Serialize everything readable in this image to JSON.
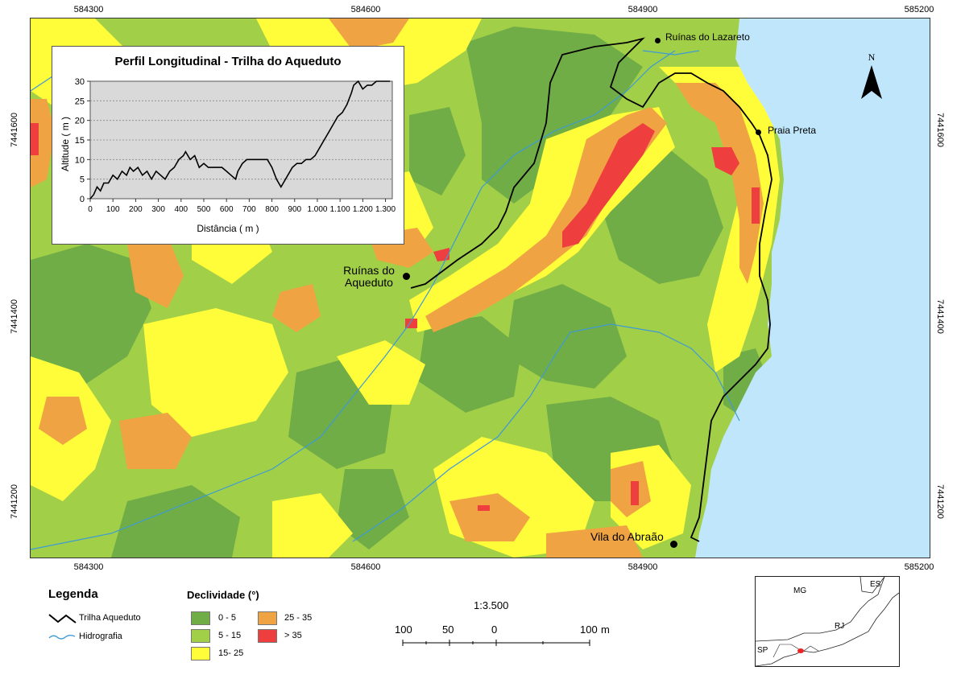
{
  "coords": {
    "top": [
      "584300",
      "584600",
      "584900",
      "585200"
    ],
    "bottom": [
      "584300",
      "584600",
      "584900",
      "585200"
    ],
    "left": [
      "7441600",
      "7441400",
      "7441200"
    ],
    "right": [
      "7441600",
      "7441400",
      "7441200"
    ]
  },
  "places": {
    "lazareto": "Ruínas do Lazareto",
    "praia_preta": "Praia Preta",
    "aqueduto_1": "Ruínas do",
    "aqueduto_2": "Aqueduto",
    "abraao": "Vila do Abraão"
  },
  "north_label": "N",
  "profile": {
    "title": "Perfil Longitudinal - Trilha do Aqueduto",
    "xlabel": "Distância ( m )",
    "ylabel": "Altitude ( m )"
  },
  "chart_data": {
    "type": "line",
    "title": "Perfil Longitudinal - Trilha do Aqueduto",
    "xlabel": "Distância ( m )",
    "ylabel": "Altitude ( m )",
    "x_ticks": [
      "0",
      "100",
      "200",
      "300",
      "400",
      "500",
      "600",
      "700",
      "800",
      "900",
      "1.000",
      "1.100",
      "1.200",
      "1.300"
    ],
    "y_ticks": [
      "0",
      "5",
      "10",
      "15",
      "20",
      "25",
      "30"
    ],
    "xlim": [
      0,
      1330
    ],
    "ylim": [
      0,
      30
    ],
    "grid": true,
    "series": [
      {
        "x": [
          0,
          15,
          30,
          45,
          60,
          80,
          100,
          120,
          140,
          160,
          175,
          190,
          210,
          230,
          250,
          270,
          290,
          310,
          330,
          350,
          370,
          390,
          410,
          420,
          440,
          460,
          480,
          500,
          520,
          540,
          560,
          580,
          600,
          620,
          640,
          650,
          670,
          690,
          700,
          720,
          740,
          760,
          780,
          800,
          820,
          840,
          850,
          870,
          890,
          910,
          930,
          950,
          970,
          990,
          1010,
          1030,
          1050,
          1070,
          1090,
          1110,
          1130,
          1150,
          1160,
          1180,
          1200,
          1220,
          1240,
          1260,
          1280,
          1300,
          1320
        ],
        "y": [
          0,
          1,
          3,
          2,
          4,
          4,
          6,
          5,
          7,
          6,
          8,
          7,
          8,
          6,
          7,
          5,
          7,
          6,
          5,
          7,
          8,
          10,
          11,
          12,
          10,
          11,
          8,
          9,
          8,
          8,
          8,
          8,
          7,
          6,
          5,
          7,
          9,
          10,
          10,
          10,
          10,
          10,
          10,
          8,
          5,
          3,
          4,
          6,
          8,
          9,
          9,
          10,
          10,
          11,
          13,
          15,
          17,
          19,
          21,
          22,
          24,
          27,
          29,
          30,
          28,
          29,
          29,
          30,
          30,
          30,
          30
        ]
      }
    ]
  },
  "legend": {
    "title": "Legenda",
    "trail": "Trilha Aqueduto",
    "hydro": "Hidrografia",
    "slope_title": "Declividade (°)",
    "classes": [
      {
        "label": "0 - 5",
        "color": "#70ad47"
      },
      {
        "label": "5 - 15",
        "color": "#a2cf48"
      },
      {
        "label": "15- 25",
        "color": "#fffd3a"
      },
      {
        "label": "25 - 35",
        "color": "#f0a342"
      },
      {
        "label": "> 35",
        "color": "#ee3e3e"
      }
    ]
  },
  "scale": {
    "ratio": "1:3.500",
    "labels": [
      "100",
      "50",
      "0",
      "100"
    ],
    "unit": "m"
  },
  "inset": {
    "labels": [
      "MG",
      "ES",
      "RJ",
      "SP"
    ]
  },
  "colors": {
    "sea": "#bfe6fb",
    "trail": "#000000",
    "river": "#3d9ad6"
  }
}
